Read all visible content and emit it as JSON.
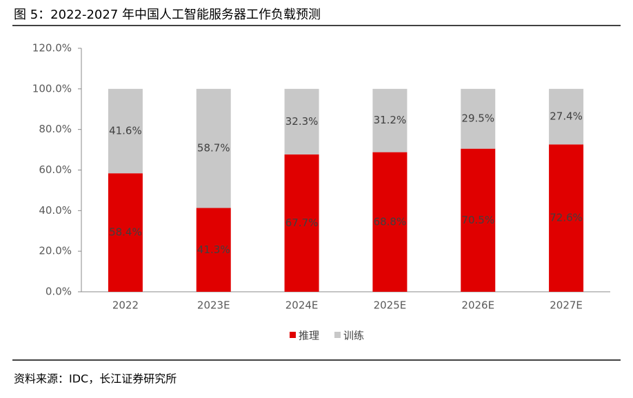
{
  "title": "图 5：2022-2027 年中国人工智能服务器工作负载预测",
  "source": "资料来源：IDC，长江证券研究所",
  "chart_data": {
    "type": "stacked_bar",
    "categories": [
      "2022",
      "2023E",
      "2024E",
      "2025E",
      "2026E",
      "2027E"
    ],
    "series": [
      {
        "name": "推理",
        "color": "#e00000",
        "values": [
          58.4,
          41.3,
          67.7,
          68.8,
          70.5,
          72.6
        ],
        "value_labels": [
          "58.4%",
          "41.3%",
          "67.7%",
          "68.8%",
          "70.5%",
          "72.6%"
        ]
      },
      {
        "name": "训练",
        "color": "#c8c8c8",
        "values": [
          41.6,
          58.7,
          32.3,
          31.2,
          29.5,
          27.4
        ],
        "value_labels": [
          "41.6%",
          "58.7%",
          "32.3%",
          "31.2%",
          "29.5%",
          "27.4%"
        ]
      }
    ],
    "ylim": [
      0,
      120
    ],
    "yticks": [
      {
        "value": 0,
        "label": "0.0%"
      },
      {
        "value": 20,
        "label": "20.0%"
      },
      {
        "value": 40,
        "label": "40.0%"
      },
      {
        "value": 60,
        "label": "60.0%"
      },
      {
        "value": 80,
        "label": "80.0%"
      },
      {
        "value": 100,
        "label": "100.0%"
      },
      {
        "value": 120,
        "label": "120.0%"
      }
    ],
    "legend": "bottom"
  }
}
